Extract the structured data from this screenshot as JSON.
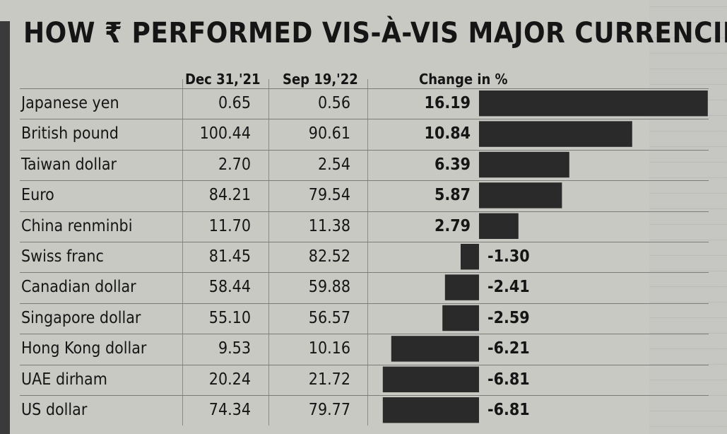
{
  "title": "HOW ₹ PERFORMED VIS-À-VIS MAJOR CURRENCIES",
  "headers": {
    "currency": "",
    "dec": "Dec 31,'21",
    "sep": "Sep 19,'22",
    "change": "Change in %"
  },
  "rows": [
    {
      "currency": "Japanese yen",
      "dec": "0.65",
      "sep": "0.56",
      "change": "16.19"
    },
    {
      "currency": "British pound",
      "dec": "100.44",
      "sep": "90.61",
      "change": "10.84"
    },
    {
      "currency": "Taiwan dollar",
      "dec": "2.70",
      "sep": "2.54",
      "change": "6.39"
    },
    {
      "currency": "Euro",
      "dec": "84.21",
      "sep": "79.54",
      "change": "5.87"
    },
    {
      "currency": "China renminbi",
      "dec": "11.70",
      "sep": "11.38",
      "change": "2.79"
    },
    {
      "currency": "Swiss franc",
      "dec": "81.45",
      "sep": "82.52",
      "change": "-1.30"
    },
    {
      "currency": "Canadian dollar",
      "dec": "58.44",
      "sep": "59.88",
      "change": "-2.41"
    },
    {
      "currency": "Singapore dollar",
      "dec": "55.10",
      "sep": "56.57",
      "change": "-2.59"
    },
    {
      "currency": "Hong Kong dollar",
      "dec": "9.53",
      "sep": "10.16",
      "change": "-6.21"
    },
    {
      "currency": "UAE dirham",
      "dec": "20.24",
      "sep": "21.72",
      "change": "-6.81"
    },
    {
      "currency": "US dollar",
      "dec": "74.34",
      "sep": "79.77",
      "change": "-6.81"
    }
  ],
  "chart_data": {
    "type": "bar",
    "title": "HOW ₹ PERFORMED VIS-À-VIS MAJOR CURRENCIES",
    "xlabel": "Change in %",
    "ylabel": "",
    "categories": [
      "Japanese yen",
      "British pound",
      "Taiwan dollar",
      "Euro",
      "China renminbi",
      "Swiss franc",
      "Canadian dollar",
      "Singapore dollar",
      "Hong Kong dollar",
      "UAE dirham",
      "US dollar"
    ],
    "values": [
      16.19,
      10.84,
      6.39,
      5.87,
      2.79,
      -1.3,
      -2.41,
      -2.59,
      -6.21,
      -6.81,
      -6.81
    ],
    "orientation": "horizontal",
    "bar_color": "#2a2a2a",
    "grid": false,
    "legend": "none"
  }
}
